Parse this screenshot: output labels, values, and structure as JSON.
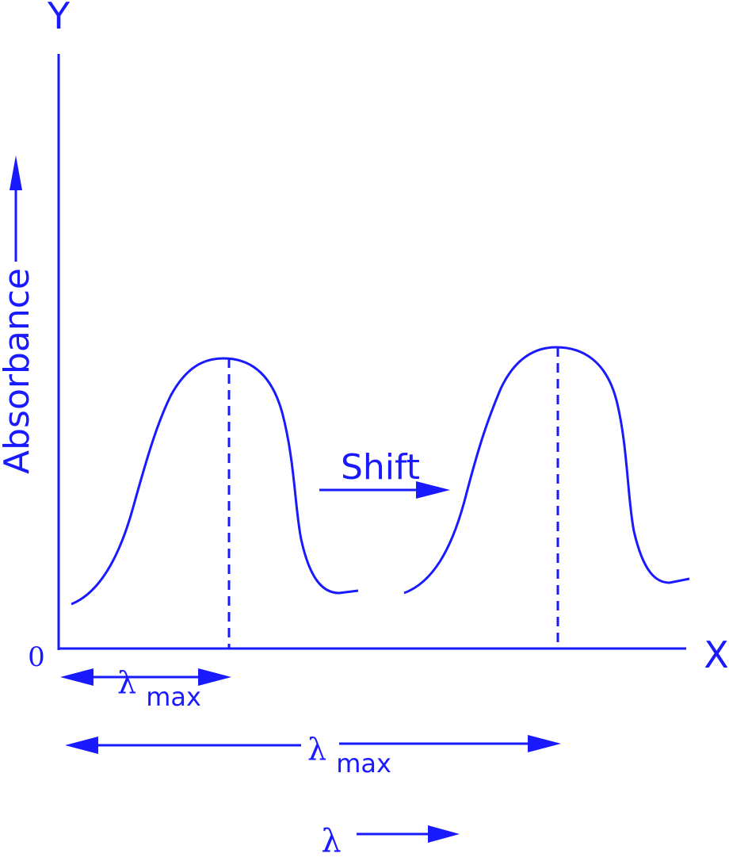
{
  "colors": {
    "ink": "#1a1aff"
  },
  "axes": {
    "y_label": "Y",
    "x_label": "X",
    "origin_label": "0",
    "vertical_label": "Absorbance"
  },
  "annotations": {
    "shift_label": "Shift",
    "lambda_symbol": "λ",
    "max_subscript": "max"
  }
}
